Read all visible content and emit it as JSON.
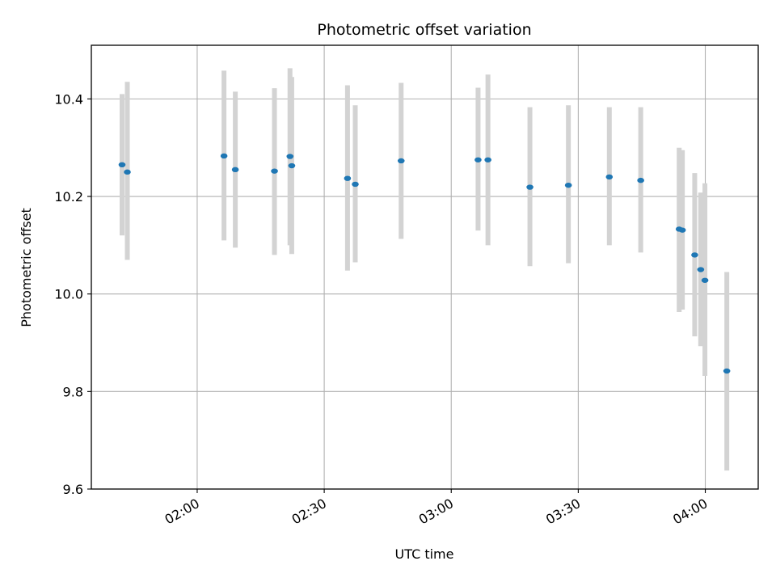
{
  "chart_data": {
    "type": "scatter",
    "title": "Photometric offset variation",
    "xlabel": "UTC time",
    "ylabel": "Photometric offset",
    "x_ticks": [
      "01:30",
      "02:00",
      "02:30",
      "03:00",
      "03:30",
      "04:00"
    ],
    "x_tick_labels": [
      "",
      "02:00",
      "02:30",
      "03:00",
      "03:30",
      "04:00"
    ],
    "y_ticks": [
      9.6,
      9.8,
      10.0,
      10.2,
      10.4
    ],
    "y_tick_labels": [
      "9.6",
      "9.8",
      "10.0",
      "10.2",
      "10.4"
    ],
    "xlim": [
      "01:35:00",
      "04:12:30"
    ],
    "ylim": [
      9.6,
      10.51
    ],
    "grid": true,
    "marker_color": "#1f77b4",
    "errorbar_color": "#d3d3d3",
    "points": [
      {
        "time": "01:42:15",
        "y": 10.265,
        "err_low": 10.12,
        "err_high": 10.41
      },
      {
        "time": "01:43:30",
        "y": 10.25,
        "err_low": 10.07,
        "err_high": 10.435
      },
      {
        "time": "02:06:20",
        "y": 10.283,
        "err_low": 10.11,
        "err_high": 10.458
      },
      {
        "time": "02:09:00",
        "y": 10.255,
        "err_low": 10.095,
        "err_high": 10.415
      },
      {
        "time": "02:18:15",
        "y": 10.252,
        "err_low": 10.08,
        "err_high": 10.422
      },
      {
        "time": "02:21:55",
        "y": 10.282,
        "err_low": 10.1,
        "err_high": 10.463
      },
      {
        "time": "02:22:20",
        "y": 10.263,
        "err_low": 10.082,
        "err_high": 10.445
      },
      {
        "time": "02:35:30",
        "y": 10.237,
        "err_low": 10.048,
        "err_high": 10.428
      },
      {
        "time": "02:37:20",
        "y": 10.225,
        "err_low": 10.065,
        "err_high": 10.387
      },
      {
        "time": "02:48:10",
        "y": 10.273,
        "err_low": 10.113,
        "err_high": 10.433
      },
      {
        "time": "03:06:20",
        "y": 10.275,
        "err_low": 10.13,
        "err_high": 10.423
      },
      {
        "time": "03:08:40",
        "y": 10.275,
        "err_low": 10.1,
        "err_high": 10.45
      },
      {
        "time": "03:18:35",
        "y": 10.219,
        "err_low": 10.057,
        "err_high": 10.383
      },
      {
        "time": "03:27:40",
        "y": 10.223,
        "err_low": 10.063,
        "err_high": 10.387
      },
      {
        "time": "03:37:20",
        "y": 10.24,
        "err_low": 10.1,
        "err_high": 10.383
      },
      {
        "time": "03:44:45",
        "y": 10.233,
        "err_low": 10.085,
        "err_high": 10.383
      },
      {
        "time": "03:53:50",
        "y": 10.133,
        "err_low": 9.963,
        "err_high": 10.3
      },
      {
        "time": "03:54:35",
        "y": 10.131,
        "err_low": 9.968,
        "err_high": 10.295
      },
      {
        "time": "03:57:30",
        "y": 10.08,
        "err_low": 9.913,
        "err_high": 10.248
      },
      {
        "time": "03:58:55",
        "y": 10.05,
        "err_low": 9.893,
        "err_high": 10.208
      },
      {
        "time": "03:59:55",
        "y": 10.028,
        "err_low": 9.832,
        "err_high": 10.227
      },
      {
        "time": "04:05:05",
        "y": 9.842,
        "err_low": 9.638,
        "err_high": 10.045
      }
    ]
  }
}
